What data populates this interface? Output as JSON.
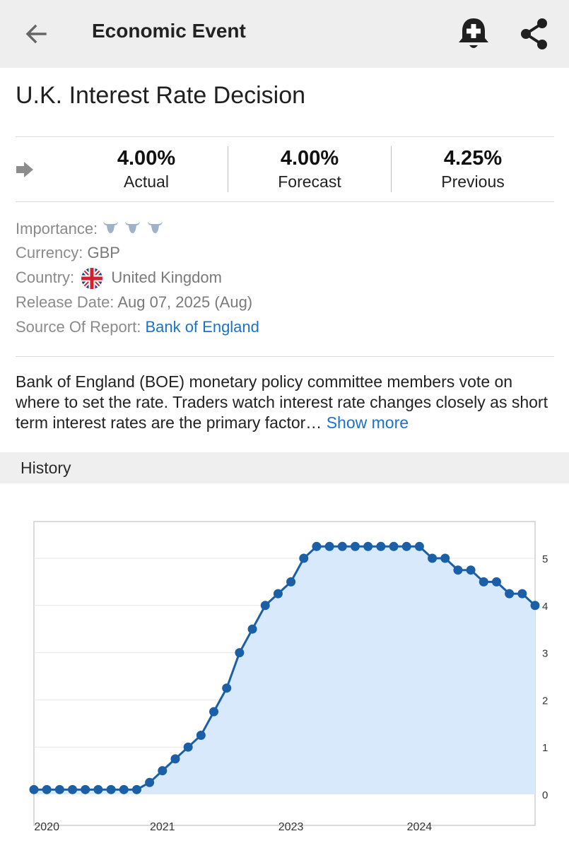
{
  "header": {
    "title": "Economic Event",
    "back_icon": "arrow-left-icon",
    "alert_icon": "bell-plus-icon",
    "share_icon": "share-icon"
  },
  "event": {
    "title": "U.K. Interest Rate Decision",
    "actual": {
      "value": "4.00%",
      "label": "Actual"
    },
    "forecast": {
      "value": "4.00%",
      "label": "Forecast"
    },
    "previous": {
      "value": "4.25%",
      "label": "Previous"
    }
  },
  "details": {
    "importance_label": "Importance:",
    "importance_level": 3,
    "currency_label": "Currency:",
    "currency_value": "GBP",
    "country_label": "Country:",
    "country_value": "United Kingdom",
    "release_label": "Release Date:",
    "release_value": "Aug 07, 2025 (Aug)",
    "source_label": "Source Of Report:",
    "source_value": "Bank of England"
  },
  "description": {
    "text": "Bank of England (BOE) monetary policy committee members vote on where to set the rate. Traders watch interest rate changes closely as short term interest rates are the primary factor…",
    "show_more": "Show more"
  },
  "history": {
    "title": "History"
  },
  "colors": {
    "line": "#1b5fa6",
    "area": "#d8e9fc",
    "link": "#1a73c8",
    "topbar": "#eeeeee"
  },
  "chart_data": {
    "type": "area",
    "title": "",
    "xlabel": "",
    "ylabel": "",
    "ylim": [
      0,
      5.5
    ],
    "y_ticks": [
      "0",
      "1",
      "2",
      "3",
      "4",
      "5"
    ],
    "x_tick_labels": [
      {
        "label": "2020",
        "index": 1
      },
      {
        "label": "2021",
        "index": 10
      },
      {
        "label": "2023",
        "index": 20
      },
      {
        "label": "2024",
        "index": 30
      }
    ],
    "grid": true,
    "series": [
      {
        "values": [
          0.1,
          0.1,
          0.1,
          0.1,
          0.1,
          0.1,
          0.1,
          0.1,
          0.1,
          0.25,
          0.5,
          0.75,
          1.0,
          1.25,
          1.75,
          2.25,
          3.0,
          3.5,
          4.0,
          4.25,
          4.5,
          5.0,
          5.25,
          5.25,
          5.25,
          5.25,
          5.25,
          5.25,
          5.25,
          5.25,
          5.25,
          5.0,
          5.0,
          4.75,
          4.75,
          4.5,
          4.5,
          4.25,
          4.25,
          4.0
        ]
      }
    ]
  }
}
